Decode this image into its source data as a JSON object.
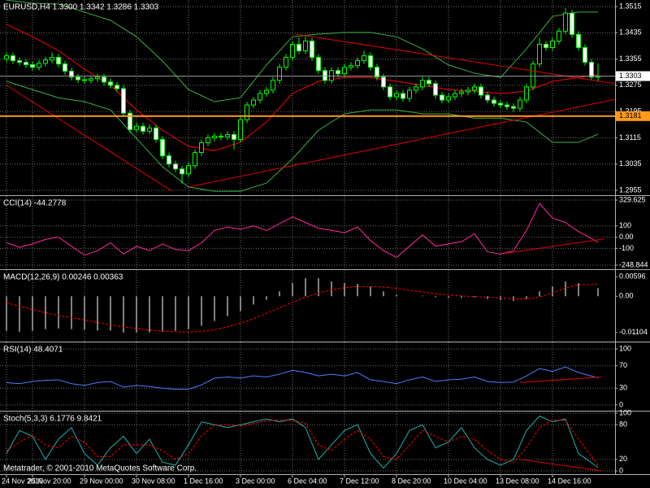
{
  "chart_data": [
    {
      "type": "candlestick",
      "title": "EURUSD,H4  1.3300 1.3342 1.3286 1.3303",
      "xlim": [
        -1,
        93.625
      ],
      "ylim": [
        1.294,
        1.3535
      ],
      "grid": true,
      "yticks": [
        1.3515,
        1.3435,
        1.3355,
        1.3275,
        1.3195,
        1.3115,
        1.3035,
        1.2955
      ],
      "xticks": [
        {
          "value": 0,
          "label": "24 Nov 2010"
        },
        {
          "value": 4,
          "label": "25 Nov 20:00"
        },
        {
          "value": 12,
          "label": "29 Nov 00:00"
        },
        {
          "value": 20,
          "label": "30 Nov 08:00"
        },
        {
          "value": 28,
          "label": "1 Dec 16:00"
        },
        {
          "value": 36,
          "label": "3 Dec 00:00"
        },
        {
          "value": 44,
          "label": "6 Dec 04:00"
        },
        {
          "value": 52,
          "label": "7 Dec 12:00"
        },
        {
          "value": 60,
          "label": "8 Dec 20:00"
        },
        {
          "value": 68,
          "label": "10 Dec 04:00"
        },
        {
          "value": 76,
          "label": "13 Dec 08:00"
        },
        {
          "value": 84,
          "label": "14 Dec 16:00"
        }
      ],
      "candle_colors": {
        "outline": "#00ff00",
        "bull_fill": "#000000",
        "bear_fill": "#ffffff"
      },
      "open": [
        1.3355,
        1.3365,
        1.335,
        1.3345,
        1.3338,
        1.333,
        1.3342,
        1.3352,
        1.336,
        1.334,
        1.3318,
        1.33,
        1.3292,
        1.329,
        1.3295,
        1.33,
        1.3285,
        1.3275,
        1.3265,
        1.319,
        1.314,
        1.315,
        1.3135,
        1.3145,
        1.311,
        1.306,
        1.3035,
        1.302,
        1.3005,
        1.303,
        1.307,
        1.31,
        1.3115,
        1.312,
        1.3118,
        1.3125,
        1.311,
        1.317,
        1.3215,
        1.323,
        1.325,
        1.326,
        1.329,
        1.333,
        1.336,
        1.34,
        1.338,
        1.341,
        1.336,
        1.332,
        1.329,
        1.332,
        1.331,
        1.333,
        1.3335,
        1.335,
        1.3365,
        1.333,
        1.33,
        1.327,
        1.324,
        1.325,
        1.3235,
        1.326,
        1.327,
        1.329,
        1.328,
        1.3245,
        1.323,
        1.324,
        1.325,
        1.3255,
        1.326,
        1.327,
        1.3245,
        1.323,
        1.322,
        1.3215,
        1.321,
        1.3205,
        1.323,
        1.327,
        1.334,
        1.34,
        1.339,
        1.341,
        1.344,
        1.3495,
        1.343,
        1.339,
        1.3345,
        1.33
      ],
      "high": [
        1.3375,
        1.3375,
        1.336,
        1.3355,
        1.3348,
        1.3352,
        1.3362,
        1.3375,
        1.337,
        1.335,
        1.3328,
        1.331,
        1.3302,
        1.3305,
        1.331,
        1.331,
        1.3295,
        1.3285,
        1.3275,
        1.32,
        1.316,
        1.316,
        1.3155,
        1.3155,
        1.312,
        1.307,
        1.3045,
        1.303,
        1.304,
        1.308,
        1.311,
        1.3125,
        1.313,
        1.313,
        1.3135,
        1.3135,
        1.318,
        1.3225,
        1.324,
        1.326,
        1.327,
        1.33,
        1.334,
        1.337,
        1.341,
        1.342,
        1.3425,
        1.342,
        1.337,
        1.333,
        1.333,
        1.333,
        1.334,
        1.3345,
        1.336,
        1.338,
        1.3375,
        1.334,
        1.331,
        1.328,
        1.326,
        1.326,
        1.327,
        1.328,
        1.33,
        1.33,
        1.329,
        1.3255,
        1.325,
        1.326,
        1.3265,
        1.327,
        1.328,
        1.328,
        1.3255,
        1.324,
        1.323,
        1.3225,
        1.322,
        1.324,
        1.328,
        1.335,
        1.342,
        1.341,
        1.342,
        1.345,
        1.351,
        1.3505,
        1.344,
        1.34,
        1.3355,
        1.3342
      ],
      "low": [
        1.3345,
        1.334,
        1.3335,
        1.3328,
        1.332,
        1.332,
        1.3332,
        1.3342,
        1.333,
        1.3308,
        1.329,
        1.3282,
        1.328,
        1.328,
        1.3285,
        1.3275,
        1.3265,
        1.3255,
        1.318,
        1.313,
        1.313,
        1.3125,
        1.3125,
        1.31,
        1.305,
        1.3025,
        1.301,
        1.2975,
        1.2995,
        1.302,
        1.306,
        1.309,
        1.3105,
        1.3108,
        1.3108,
        1.308,
        1.31,
        1.316,
        1.3205,
        1.322,
        1.324,
        1.325,
        1.328,
        1.332,
        1.335,
        1.337,
        1.337,
        1.335,
        1.331,
        1.328,
        1.328,
        1.33,
        1.33,
        1.332,
        1.3325,
        1.334,
        1.332,
        1.329,
        1.326,
        1.323,
        1.323,
        1.3225,
        1.3225,
        1.325,
        1.326,
        1.327,
        1.3235,
        1.322,
        1.322,
        1.323,
        1.324,
        1.3245,
        1.325,
        1.3235,
        1.322,
        1.321,
        1.3205,
        1.32,
        1.3195,
        1.3195,
        1.322,
        1.326,
        1.333,
        1.338,
        1.338,
        1.34,
        1.343,
        1.342,
        1.338,
        1.3335,
        1.329,
        1.3286
      ],
      "close": [
        1.3365,
        1.335,
        1.3345,
        1.3338,
        1.333,
        1.3342,
        1.3352,
        1.336,
        1.334,
        1.3318,
        1.33,
        1.3292,
        1.329,
        1.3295,
        1.33,
        1.3285,
        1.3275,
        1.3265,
        1.319,
        1.314,
        1.315,
        1.3135,
        1.3145,
        1.311,
        1.306,
        1.3035,
        1.302,
        1.3005,
        1.303,
        1.307,
        1.31,
        1.3115,
        1.312,
        1.3118,
        1.3125,
        1.311,
        1.317,
        1.3215,
        1.323,
        1.325,
        1.326,
        1.329,
        1.333,
        1.336,
        1.34,
        1.338,
        1.341,
        1.336,
        1.332,
        1.329,
        1.332,
        1.331,
        1.333,
        1.3335,
        1.335,
        1.3365,
        1.333,
        1.33,
        1.327,
        1.324,
        1.325,
        1.3235,
        1.326,
        1.327,
        1.329,
        1.328,
        1.3245,
        1.323,
        1.324,
        1.325,
        1.3255,
        1.326,
        1.327,
        1.3245,
        1.323,
        1.322,
        1.3215,
        1.321,
        1.3205,
        1.323,
        1.327,
        1.334,
        1.34,
        1.339,
        1.341,
        1.344,
        1.3495,
        1.343,
        1.339,
        1.3345,
        1.33,
        1.3303
      ],
      "overlay_x": [
        0,
        4,
        8,
        12,
        16,
        20,
        24,
        28,
        32,
        36,
        40,
        44,
        48,
        52,
        56,
        60,
        64,
        68,
        72,
        76,
        80,
        84,
        88,
        91
      ],
      "overlays": [
        {
          "color": "#3cb043",
          "values": [
            1.3535,
            1.3525,
            1.3523,
            1.3498,
            1.3473,
            1.3423,
            1.3349,
            1.3262,
            1.3225,
            1.3237,
            1.3337,
            1.3423,
            1.3431,
            1.3436,
            1.3436,
            1.3423,
            1.3386,
            1.3337,
            1.3312,
            1.3299,
            1.3386,
            1.3485,
            1.3498,
            1.3498
          ]
        },
        {
          "color": "#ff0000",
          "values": [
            1.3461,
            1.3423,
            1.3381,
            1.3324,
            1.3275,
            1.32,
            1.3138,
            1.3089,
            1.3076,
            1.3101,
            1.3163,
            1.325,
            1.3287,
            1.3299,
            1.3299,
            1.3287,
            1.3275,
            1.3262,
            1.3257,
            1.325,
            1.3257,
            1.3287,
            1.3299,
            1.3307
          ]
        },
        {
          "color": "#3cb043",
          "values": [
            1.3287,
            1.3262,
            1.3237,
            1.3225,
            1.32,
            1.3113,
            1.3027,
            1.2965,
            1.2952,
            1.2952,
            1.2977,
            1.3051,
            1.3138,
            1.3188,
            1.32,
            1.32,
            1.3188,
            1.3188,
            1.3175,
            1.3175,
            1.3163,
            1.3101,
            1.3101,
            1.3126
          ]
        }
      ],
      "trendlines": [
        {
          "color": "#e00000",
          "x": [
            0,
            25.5
          ],
          "values": [
            1.3275,
            1.2952
          ]
        },
        {
          "color": "#e00000",
          "x": [
            28,
            93.6
          ],
          "values": [
            1.2965,
            1.3232
          ]
        },
        {
          "color": "#e00000",
          "x": [
            44.5,
            93.6
          ],
          "values": [
            1.3431,
            1.328
          ]
        }
      ],
      "hline": {
        "value": 1.3181,
        "color": "#ff9a1a"
      },
      "bid": {
        "value": 1.3303,
        "color": "#9a9a9a"
      }
    },
    {
      "type": "line",
      "title": "CCI(14) -44.2778",
      "ylim": [
        -285,
        366
      ],
      "grid": true,
      "yticks": [
        329.625,
        100,
        {
          "value": 0,
          "label": "0.00"
        },
        -100,
        -248.844
      ],
      "x": [
        0,
        2,
        4,
        6,
        8,
        10,
        12,
        14,
        16,
        18,
        20,
        22,
        24,
        26,
        28,
        30,
        32,
        34,
        36,
        38,
        40,
        42,
        44,
        46,
        48,
        50,
        52,
        54,
        56,
        58,
        60,
        62,
        64,
        66,
        68,
        70,
        72,
        74,
        76,
        78,
        80,
        82,
        84,
        86,
        88,
        91
      ],
      "series": [
        {
          "color": "#ff2a9a",
          "values": [
            -50,
            -90,
            -60,
            -20,
            0,
            -80,
            -160,
            -120,
            -50,
            -150,
            -80,
            -120,
            -60,
            -110,
            -120,
            -50,
            60,
            90,
            70,
            100,
            60,
            120,
            180,
            130,
            80,
            60,
            40,
            90,
            -30,
            -120,
            -180,
            -80,
            20,
            -80,
            -60,
            -40,
            30,
            -130,
            -150,
            -120,
            60,
            300,
            170,
            130,
            50,
            -44.2778
          ]
        }
      ],
      "trendlines": [
        {
          "color": "#e00000",
          "x": [
            76.5,
            92
          ],
          "values": [
            -145,
            -15
          ]
        }
      ]
    },
    {
      "type": "line",
      "title": "MACD(12,26,9) 0.00246 0.00363",
      "ylim": [
        -0.0138,
        0.008
      ],
      "grid": false,
      "yticks": [
        0.00596,
        {
          "value": 0,
          "label": "0.00"
        },
        -0.01104
      ],
      "x": [
        0,
        2,
        4,
        6,
        8,
        10,
        12,
        14,
        16,
        18,
        20,
        22,
        24,
        26,
        28,
        30,
        32,
        34,
        36,
        38,
        40,
        42,
        44,
        46,
        48,
        50,
        52,
        54,
        56,
        58,
        60,
        62,
        64,
        66,
        68,
        70,
        72,
        74,
        76,
        78,
        80,
        82,
        84,
        86,
        88,
        91
      ],
      "series": [
        {
          "kind": "bar",
          "color": "#ffffff",
          "values": [
            -0.0105,
            -0.0108,
            -0.0105,
            -0.01,
            -0.0098,
            -0.01,
            -0.0102,
            -0.0105,
            -0.0105,
            -0.011,
            -0.011,
            -0.011,
            -0.0108,
            -0.0105,
            -0.01,
            -0.009,
            -0.0075,
            -0.006,
            -0.0045,
            -0.0025,
            -0.001,
            0.0015,
            0.004,
            0.0055,
            0.0055,
            0.0045,
            0.004,
            0.0038,
            0.003,
            0.0015,
            0.0005,
            0.0,
            0.0002,
            -0.0003,
            -0.0005,
            -0.0005,
            -0.0003,
            -0.0008,
            -0.0012,
            -0.0014,
            -0.0008,
            0.0015,
            0.003,
            0.0045,
            0.004,
            0.00246
          ]
        },
        {
          "kind": "line",
          "dash": true,
          "color": "#ff0000",
          "values": [
            -0.002,
            -0.003,
            -0.004,
            -0.005,
            -0.0058,
            -0.0065,
            -0.0072,
            -0.008,
            -0.0087,
            -0.0093,
            -0.0098,
            -0.0103,
            -0.0106,
            -0.0108,
            -0.0109,
            -0.0107,
            -0.0102,
            -0.0093,
            -0.0082,
            -0.0068,
            -0.0052,
            -0.0035,
            -0.0018,
            -0.0003,
            0.001,
            0.002,
            0.0026,
            0.003,
            0.003,
            0.0028,
            0.0024,
            0.0018,
            0.0013,
            0.0008,
            0.0004,
            0.0001,
            -0.0001,
            -0.0003,
            -0.0005,
            -0.0008,
            -0.0008,
            -0.0002,
            0.001,
            0.0025,
            0.0035,
            0.00363
          ]
        }
      ]
    },
    {
      "type": "line",
      "title": "RSI(14) 48.4071",
      "ylim": [
        -10.3,
        111.8
      ],
      "grid": true,
      "yticks": [
        100,
        70,
        30,
        0
      ],
      "x": [
        0,
        2,
        4,
        6,
        8,
        10,
        12,
        14,
        16,
        18,
        20,
        22,
        24,
        26,
        28,
        30,
        32,
        34,
        36,
        38,
        40,
        42,
        44,
        46,
        48,
        50,
        52,
        54,
        56,
        58,
        60,
        62,
        64,
        66,
        68,
        70,
        72,
        74,
        76,
        78,
        80,
        82,
        84,
        86,
        88,
        91
      ],
      "series": [
        {
          "color": "#4a7fff",
          "values": [
            40,
            38,
            42,
            44,
            45,
            38,
            35,
            40,
            42,
            32,
            35,
            33,
            30,
            28,
            28,
            36,
            48,
            50,
            48,
            52,
            50,
            55,
            62,
            58,
            52,
            55,
            52,
            58,
            45,
            42,
            38,
            45,
            50,
            42,
            45,
            46,
            50,
            42,
            40,
            41,
            52,
            65,
            60,
            68,
            58,
            48.4071
          ]
        }
      ],
      "trendlines": [
        {
          "color": "#e00000",
          "x": [
            79,
            91.5
          ],
          "values": [
            40,
            50
          ]
        }
      ]
    },
    {
      "type": "line",
      "title": "Stoch(5,3,3) 6.1776 9.8421",
      "ylim": [
        -5.6,
        102.8
      ],
      "grid": true,
      "yticks": [
        100,
        80,
        20,
        0
      ],
      "annotation": "Metatrader, © 2001-2010 MetaQuotes Software Corp.",
      "x": [
        0,
        2,
        4,
        6,
        8,
        10,
        12,
        14,
        16,
        18,
        20,
        22,
        24,
        26,
        28,
        30,
        32,
        34,
        36,
        38,
        40,
        42,
        44,
        46,
        48,
        50,
        52,
        54,
        56,
        58,
        60,
        62,
        64,
        66,
        68,
        70,
        72,
        74,
        76,
        78,
        80,
        82,
        84,
        86,
        88,
        91
      ],
      "series": [
        {
          "color": "#20b2aa",
          "values": [
            30,
            70,
            60,
            20,
            55,
            75,
            30,
            10,
            40,
            60,
            30,
            55,
            15,
            10,
            45,
            85,
            80,
            75,
            80,
            85,
            90,
            85,
            90,
            75,
            20,
            45,
            70,
            80,
            30,
            5,
            30,
            70,
            80,
            40,
            50,
            75,
            40,
            20,
            10,
            20,
            70,
            95,
            85,
            90,
            30,
            6.1776
          ]
        },
        {
          "dash": true,
          "color": "#ff0000",
          "values": [
            35,
            50,
            62,
            45,
            40,
            60,
            50,
            25,
            25,
            45,
            45,
            45,
            35,
            20,
            30,
            60,
            80,
            80,
            78,
            82,
            87,
            88,
            88,
            82,
            45,
            35,
            55,
            70,
            55,
            25,
            20,
            45,
            70,
            60,
            50,
            60,
            55,
            35,
            20,
            15,
            40,
            75,
            88,
            88,
            55,
            9.8421
          ]
        }
      ],
      "trendlines": [
        {
          "color": "#e00000",
          "x": [
            79,
            91.5
          ],
          "values": [
            20,
            0
          ]
        }
      ]
    }
  ]
}
